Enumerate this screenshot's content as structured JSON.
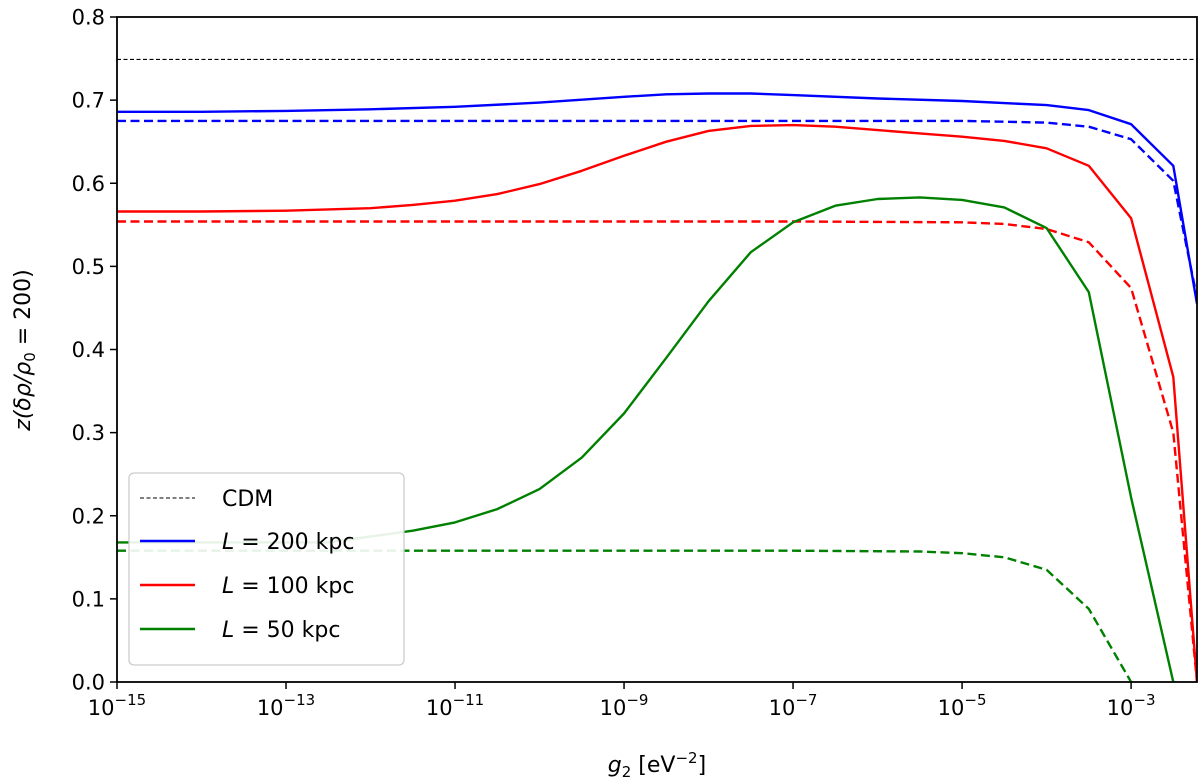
{
  "chart_data": {
    "type": "line",
    "title": "",
    "xscale": "log",
    "xlim_exponent": [
      -15,
      -2.22
    ],
    "ylim": [
      0.0,
      0.8
    ],
    "xlabel": "g₂ [eV⁻²]",
    "xlabel_parts": {
      "var": "g",
      "sub": "2",
      "unit_pre": " [eV",
      "unit_sup": "−2",
      "unit_post": "]"
    },
    "ylabel": "z(δρ/ρ₀ = 200)",
    "ylabel_parts": {
      "pre": "z(δρ/ρ",
      "sub": "0",
      "post": " = 200)"
    },
    "xticks": [
      {
        "exp": -15,
        "base": "10",
        "sup": "−15"
      },
      {
        "exp": -13,
        "base": "10",
        "sup": "−13"
      },
      {
        "exp": -11,
        "base": "10",
        "sup": "−11"
      },
      {
        "exp": -9,
        "base": "10",
        "sup": "−9"
      },
      {
        "exp": -7,
        "base": "10",
        "sup": "−7"
      },
      {
        "exp": -5,
        "base": "10",
        "sup": "−5"
      },
      {
        "exp": -3,
        "base": "10",
        "sup": "−3"
      }
    ],
    "yticks": [
      {
        "value": 0.0,
        "label": "0.0"
      },
      {
        "value": 0.1,
        "label": "0.1"
      },
      {
        "value": 0.2,
        "label": "0.2"
      },
      {
        "value": 0.3,
        "label": "0.3"
      },
      {
        "value": 0.4,
        "label": "0.4"
      },
      {
        "value": 0.5,
        "label": "0.5"
      },
      {
        "value": 0.6,
        "label": "0.6"
      },
      {
        "value": 0.7,
        "label": "0.7"
      },
      {
        "value": 0.8,
        "label": "0.8"
      }
    ],
    "grid": false,
    "legend_position": "lower-left",
    "legend": [
      {
        "key": "cdm",
        "label": "CDM",
        "color": "#000000",
        "style": "dashed-thin"
      },
      {
        "key": "L200",
        "label": "L = 200 kpc",
        "italic": "L",
        "rest": " = 200 kpc",
        "color": "#0000ff",
        "style": "solid"
      },
      {
        "key": "L100",
        "label": "L = 100 kpc",
        "italic": "L",
        "rest": " = 100 kpc",
        "color": "#ff0000",
        "style": "solid"
      },
      {
        "key": "L50",
        "label": "L = 50 kpc",
        "italic": "L",
        "rest": " = 50 kpc",
        "color": "#008000",
        "style": "solid"
      }
    ],
    "series": [
      {
        "name": "CDM",
        "color": "#000000",
        "dash": "thin",
        "x_exp": [
          -15,
          -2.22
        ],
        "y": [
          0.749,
          0.749
        ]
      },
      {
        "name": "L = 200 kpc (solid)",
        "color": "#0000ff",
        "dash": "solid",
        "x_exp": [
          -15,
          -14,
          -13,
          -12,
          -11,
          -10,
          -9,
          -8.5,
          -8,
          -7.5,
          -7,
          -6,
          -5,
          -4,
          -3.5,
          -3,
          -2.5,
          -2.22
        ],
        "y": [
          0.686,
          0.686,
          0.687,
          0.689,
          0.692,
          0.697,
          0.704,
          0.707,
          0.708,
          0.708,
          0.706,
          0.702,
          0.699,
          0.694,
          0.688,
          0.671,
          0.621,
          0.455
        ]
      },
      {
        "name": "L = 200 kpc (dashed)",
        "color": "#0000ff",
        "dash": "dashed",
        "x_exp": [
          -15,
          -11,
          -7,
          -5,
          -4,
          -3.5,
          -3,
          -2.5,
          -2.22
        ],
        "y": [
          0.675,
          0.675,
          0.675,
          0.675,
          0.673,
          0.668,
          0.653,
          0.603,
          0.462
        ]
      },
      {
        "name": "L = 100 kpc (solid)",
        "color": "#ff0000",
        "dash": "solid",
        "x_exp": [
          -15,
          -14,
          -13,
          -12,
          -11.5,
          -11,
          -10.5,
          -10,
          -9.5,
          -9,
          -8.5,
          -8,
          -7.5,
          -7,
          -6.5,
          -6,
          -5.5,
          -5,
          -4.5,
          -4,
          -3.5,
          -3,
          -2.5,
          -2.22
        ],
        "y": [
          0.566,
          0.566,
          0.567,
          0.57,
          0.574,
          0.579,
          0.587,
          0.599,
          0.615,
          0.633,
          0.65,
          0.663,
          0.669,
          0.67,
          0.668,
          0.664,
          0.66,
          0.656,
          0.651,
          0.642,
          0.621,
          0.558,
          0.367,
          0.0
        ]
      },
      {
        "name": "L = 100 kpc (dashed)",
        "color": "#ff0000",
        "dash": "dashed",
        "x_exp": [
          -15,
          -11,
          -7,
          -5,
          -4.5,
          -4,
          -3.5,
          -3,
          -2.5,
          -2.22
        ],
        "y": [
          0.554,
          0.554,
          0.554,
          0.553,
          0.551,
          0.545,
          0.529,
          0.474,
          0.3,
          0.0
        ]
      },
      {
        "name": "L = 50 kpc (solid)",
        "color": "#008000",
        "dash": "solid",
        "x_exp": [
          -15,
          -12.5,
          -12,
          -11.5,
          -11,
          -10.5,
          -10,
          -9.5,
          -9,
          -8.5,
          -8,
          -7.5,
          -7,
          -6.5,
          -6,
          -5.5,
          -5,
          -4.5,
          -4,
          -3.5,
          -3,
          -2.5
        ],
        "y": [
          0.168,
          0.168,
          0.175,
          0.182,
          0.192,
          0.208,
          0.232,
          0.27,
          0.323,
          0.39,
          0.458,
          0.517,
          0.553,
          0.573,
          0.581,
          0.583,
          0.58,
          0.571,
          0.546,
          0.469,
          0.222,
          0.0
        ]
      },
      {
        "name": "L = 50 kpc (dashed)",
        "color": "#008000",
        "dash": "dashed",
        "x_exp": [
          -15,
          -11,
          -9,
          -7,
          -5.5,
          -5,
          -4.5,
          -4,
          -3.5,
          -3
        ],
        "y": [
          0.158,
          0.158,
          0.158,
          0.158,
          0.157,
          0.155,
          0.15,
          0.135,
          0.088,
          0.0
        ]
      }
    ]
  }
}
